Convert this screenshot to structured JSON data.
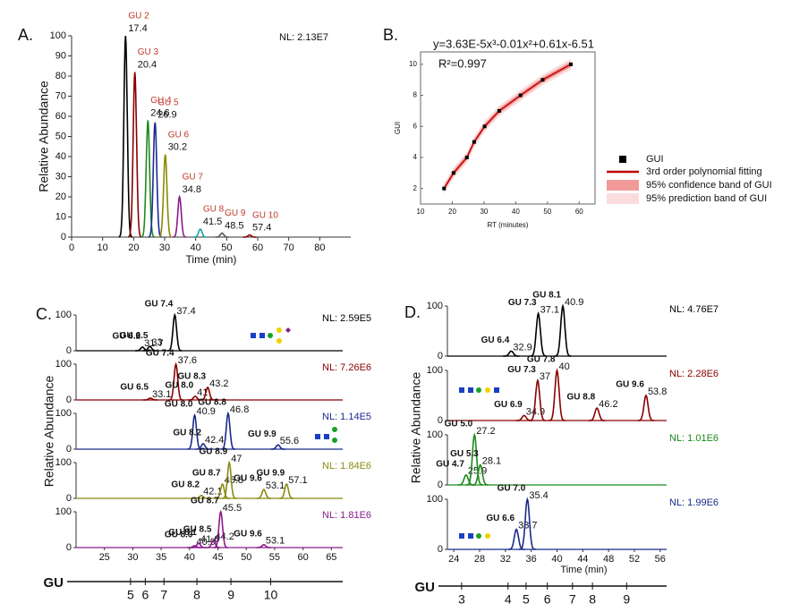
{
  "chart_data": [
    {
      "type": "chromatogram",
      "panel": "A.",
      "annotation": "NL: 2.13E7",
      "xlabel": "Time (min)",
      "ylabel": "Relative Abundance",
      "xlim": [
        0,
        90
      ],
      "xticks": [
        0,
        10,
        20,
        30,
        40,
        50,
        60,
        70,
        80
      ],
      "ylim": [
        0,
        100
      ],
      "yticks": [
        0,
        10,
        20,
        30,
        40,
        50,
        60,
        70,
        80,
        90,
        100
      ],
      "peaks": [
        {
          "name": "GU 2",
          "x": 17.4,
          "height": 100,
          "color": "#000000"
        },
        {
          "name": "GU 3",
          "x": 20.4,
          "height": 82,
          "color": "#8b0000"
        },
        {
          "name": "GU 4",
          "x": 24.6,
          "height": 58,
          "color": "#1f8a1f"
        },
        {
          "name": "GU 5",
          "x": 26.9,
          "height": 57,
          "color": "#1a2a9a"
        },
        {
          "name": "GU 6",
          "x": 30.2,
          "height": 41,
          "color": "#8a8a00"
        },
        {
          "name": "GU 7",
          "x": 34.8,
          "height": 20,
          "color": "#8b1a8b"
        },
        {
          "name": "GU 8",
          "x": 41.5,
          "height": 4,
          "color": "#1aa3a3"
        },
        {
          "name": "GU 9",
          "x": 48.5,
          "height": 2,
          "color": "#555555"
        },
        {
          "name": "GU 10",
          "x": 57.4,
          "height": 1,
          "color": "#8b0000"
        }
      ]
    },
    {
      "type": "scatter",
      "panel": "B.",
      "title": "y=3.63E-5x³-0.01x²+0.61x-6.51",
      "subtitle": "R²=0.997",
      "xlabel": "RT (minutes)",
      "ylabel": "GUI",
      "xlim": [
        10,
        65
      ],
      "xticks": [
        10,
        20,
        30,
        40,
        50,
        60
      ],
      "ylim": [
        1,
        10.8
      ],
      "yticks": [
        2,
        4,
        6,
        8,
        10
      ],
      "series": [
        {
          "name": "GUI",
          "color": "#000000",
          "x": [
            17.4,
            20.4,
            24.6,
            26.9,
            30.2,
            34.8,
            41.5,
            48.5,
            57.4
          ],
          "values": [
            2,
            3,
            4,
            5,
            6,
            7,
            8,
            9,
            10
          ]
        }
      ],
      "fit": {
        "name": "3rd order polynomial fitting",
        "color": "#c00000"
      },
      "bands": [
        {
          "name": "95% confidence band of GUI",
          "color": "#f29a9a"
        },
        {
          "name": "95% prediction band of GUI",
          "color": "#fbdcdc"
        }
      ]
    },
    {
      "type": "stacked-chromatogram",
      "panel": "C.",
      "ylabel": "Relative Abundance",
      "xlim": [
        20,
        67
      ],
      "xticks": [
        25,
        30,
        35,
        40,
        45,
        50,
        55,
        60,
        65
      ],
      "ylim": [
        0,
        100
      ],
      "yticks": [
        0,
        100
      ],
      "traces": [
        {
          "annotation": "NL: 2.59E5",
          "color": "#000000",
          "peaks": [
            {
              "name": "GU 6.2",
              "x": 31.7,
              "height": 10
            },
            {
              "name": "GU 6.5",
              "x": 33.0,
              "height": 12
            },
            {
              "name": "GU 7.4",
              "x": 37.4,
              "height": 100
            }
          ]
        },
        {
          "annotation": "NL: 7.26E6",
          "color": "#8b0000",
          "peaks": [
            {
              "name": "GU 6.5",
              "x": 33.1,
              "height": 5
            },
            {
              "name": "GU 7.4",
              "x": 37.6,
              "height": 100
            },
            {
              "name": "GU 8.0",
              "x": 41.0,
              "height": 10
            },
            {
              "name": "GU 8.3",
              "x": 43.2,
              "height": 35
            }
          ]
        },
        {
          "annotation": "NL: 1.14E5",
          "color": "#1a2a8c",
          "peaks": [
            {
              "name": "GU 8.0",
              "x": 40.9,
              "height": 95
            },
            {
              "name": "GU 8.2",
              "x": 42.4,
              "height": 15
            },
            {
              "name": "GU 8.8",
              "x": 46.8,
              "height": 100
            },
            {
              "name": "GU 9.9",
              "x": 55.6,
              "height": 12
            }
          ]
        },
        {
          "annotation": "NL: 1.84E6",
          "color": "#8a8a10",
          "peaks": [
            {
              "name": "GU 8.2",
              "x": 42.1,
              "height": 8
            },
            {
              "name": "GU 8.7",
              "x": 45.8,
              "height": 40
            },
            {
              "name": "GU 8.9",
              "x": 47.0,
              "height": 100
            },
            {
              "name": "GU 9.6",
              "x": 53.1,
              "height": 25
            },
            {
              "name": "GU 9.9",
              "x": 57.1,
              "height": 40
            }
          ]
        },
        {
          "annotation": "NL: 1.81E6",
          "color": "#8b1a8b",
          "peaks": [
            {
              "name": "GU 8.0",
              "x": 40.9,
              "height": 5
            },
            {
              "name": "GU 8.1",
              "x": 41.6,
              "height": 12
            },
            {
              "name": "GU 8.5",
              "x": 44.2,
              "height": 20
            },
            {
              "name": "GU 8.7",
              "x": 45.5,
              "height": 100
            },
            {
              "name": "GU 9.6",
              "x": 53.1,
              "height": 8
            }
          ]
        }
      ],
      "gu_scale": {
        "label": "GU",
        "ticks": [
          {
            "value": 29.6,
            "label": "5"
          },
          {
            "value": 32.2,
            "label": "6"
          },
          {
            "value": 35.5,
            "label": "7"
          },
          {
            "value": 41.3,
            "label": "8"
          },
          {
            "value": 47.3,
            "label": "9"
          },
          {
            "value": 54.3,
            "label": "10"
          }
        ]
      }
    },
    {
      "type": "stacked-chromatogram",
      "panel": "D.",
      "ylabel": "Relative Abundance",
      "xlabel": "Time (min)",
      "xlim": [
        23,
        57
      ],
      "xticks": [
        24,
        28,
        32,
        36,
        40,
        44,
        48,
        52,
        56
      ],
      "ylim": [
        0,
        100
      ],
      "yticks": [
        0,
        100
      ],
      "traces": [
        {
          "annotation": "NL: 4.76E7",
          "color": "#000000",
          "peaks": [
            {
              "name": "GU 6.4",
              "x": 32.9,
              "height": 10
            },
            {
              "name": "GU 7.3",
              "x": 37.1,
              "height": 85
            },
            {
              "name": "GU 8.1",
              "x": 40.9,
              "height": 100
            }
          ]
        },
        {
          "annotation": "NL: 2.28E6",
          "color": "#8b0000",
          "peaks": [
            {
              "name": "GU 6.9",
              "x": 34.9,
              "height": 10
            },
            {
              "name": "GU 7.3",
              "x": 37.0,
              "height": 80
            },
            {
              "name": "GU 7.8",
              "x": 40.0,
              "height": 100
            },
            {
              "name": "GU 8.8",
              "x": 46.2,
              "height": 25
            },
            {
              "name": "GU 9.6",
              "x": 53.8,
              "height": 50
            }
          ]
        },
        {
          "annotation": "NL: 1.01E6",
          "color": "#1a8a1a",
          "peaks": [
            {
              "name": "GU 4.7",
              "x": 25.9,
              "height": 20
            },
            {
              "name": "GU 5.0",
              "x": 27.2,
              "height": 100
            },
            {
              "name": "GU 5.3",
              "x": 28.1,
              "height": 40
            }
          ]
        },
        {
          "annotation": "NL: 1.99E6",
          "color": "#1a2a8c",
          "peaks": [
            {
              "name": "GU 6.6",
              "x": 33.7,
              "height": 40
            },
            {
              "name": "GU 7.0",
              "x": 35.4,
              "height": 100
            }
          ]
        }
      ],
      "gu_scale": {
        "label": "GU",
        "ticks": [
          {
            "value": 25.2,
            "label": "3"
          },
          {
            "value": 32.4,
            "label": "4"
          },
          {
            "value": 35.2,
            "label": "5"
          },
          {
            "value": 38.5,
            "label": "6"
          },
          {
            "value": 42.4,
            "label": "7"
          },
          {
            "value": 45.5,
            "label": "8"
          },
          {
            "value": 50.8,
            "label": "9"
          }
        ]
      }
    }
  ]
}
